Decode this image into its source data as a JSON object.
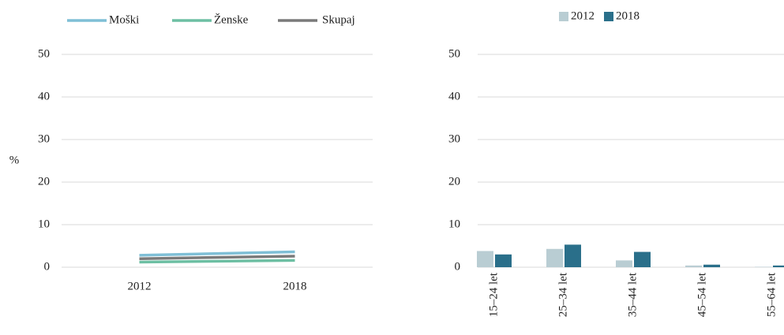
{
  "chart_data": [
    {
      "type": "line",
      "y_label": "%",
      "categories": [
        "2012",
        "2018"
      ],
      "series": [
        {
          "name": "Moški",
          "color": "#7fbfd6",
          "values": [
            2.8,
            3.6
          ]
        },
        {
          "name": "Ženske",
          "color": "#6dbfa3",
          "values": [
            1.2,
            1.6
          ]
        },
        {
          "name": "Skupaj",
          "color": "#7a7a7a",
          "values": [
            2.0,
            2.6
          ]
        }
      ],
      "ylim": [
        0,
        50
      ],
      "yticks": [
        0,
        10,
        20,
        30,
        40,
        50
      ],
      "grid": true
    },
    {
      "type": "bar",
      "categories": [
        "15–24 let",
        "25–34 let",
        "35–44 let",
        "45–54 let",
        "55–64 let"
      ],
      "series": [
        {
          "name": "2012",
          "color": "#b9cdd3",
          "values": [
            3.8,
            4.3,
            1.6,
            0.4,
            0.1
          ]
        },
        {
          "name": "2018",
          "color": "#2a6f8a",
          "values": [
            3.0,
            5.3,
            3.6,
            0.6,
            0.4
          ]
        }
      ],
      "ylim": [
        0,
        50
      ],
      "yticks": [
        0,
        10,
        20,
        30,
        40,
        50
      ],
      "grid": true
    }
  ]
}
